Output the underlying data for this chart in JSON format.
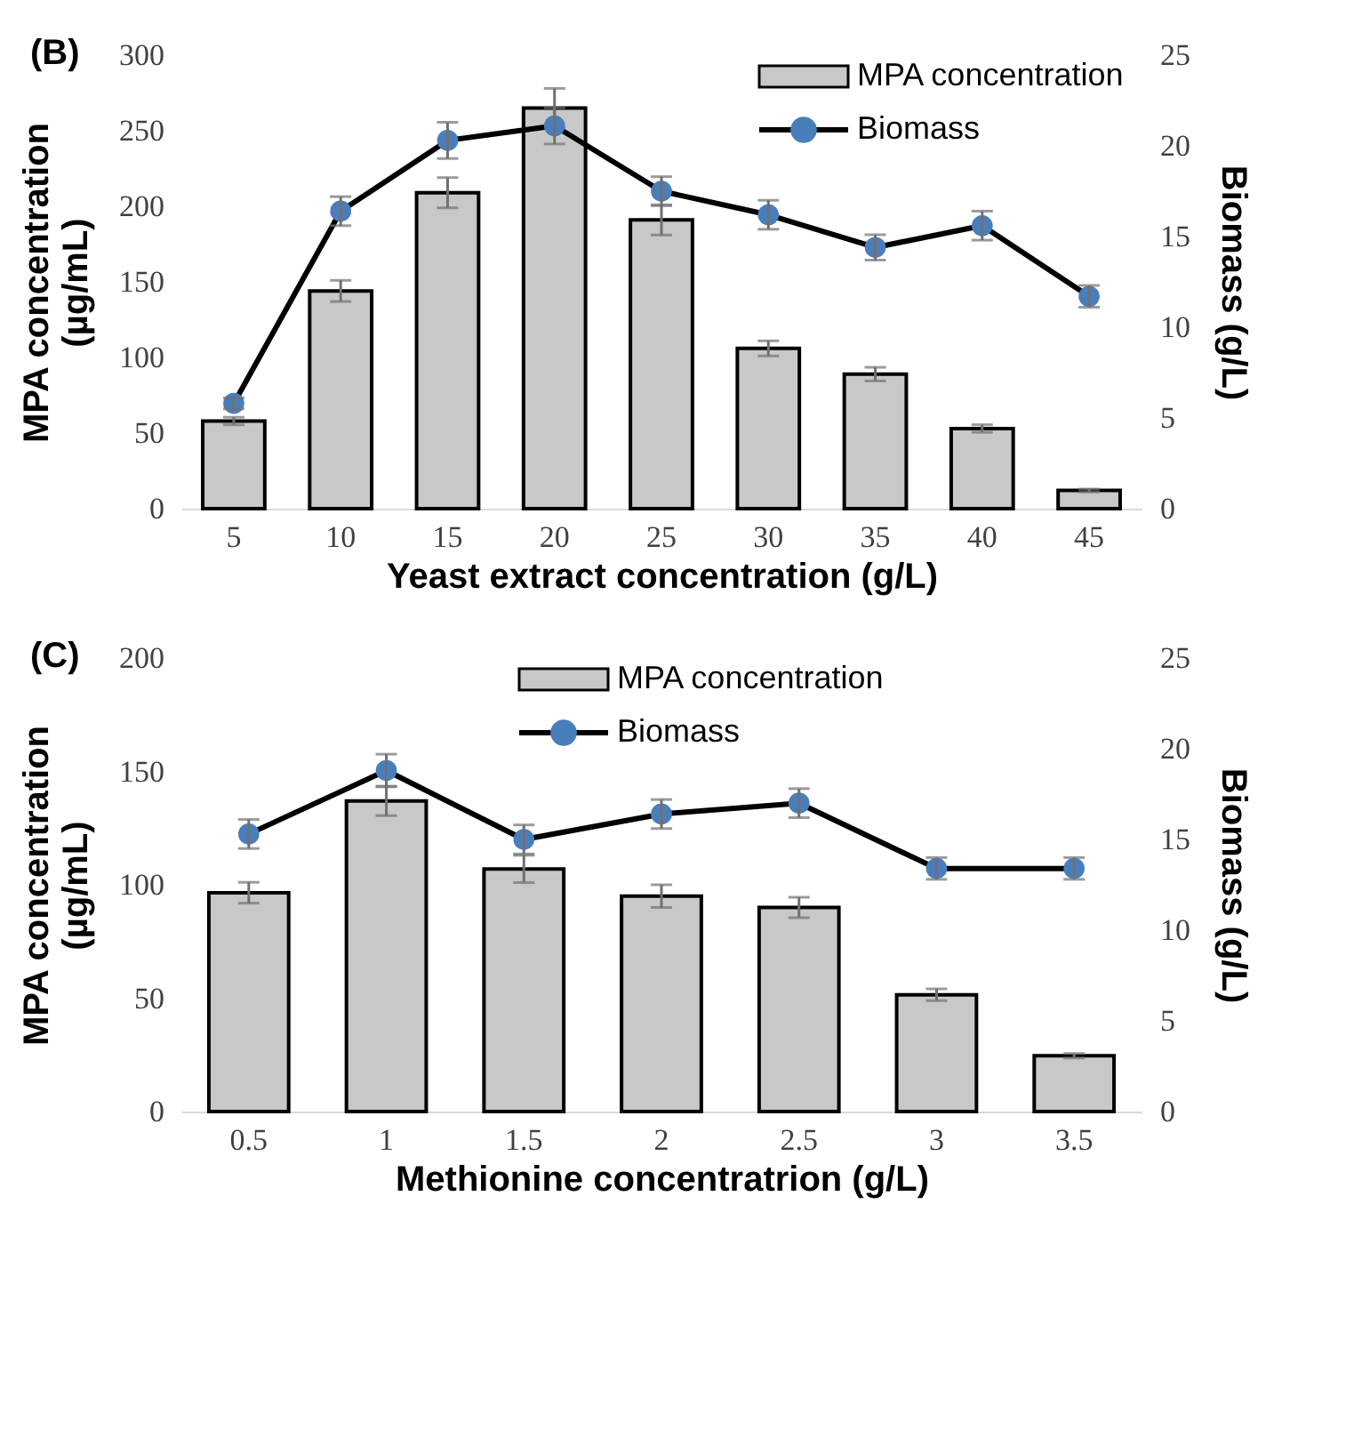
{
  "chart_data": [
    {
      "type": "bar",
      "title": "(B)",
      "xlabel": "Yeast extract concentration (g/L)",
      "ylabel": "MPA concentration\n(µg/mL)",
      "y2label": "Biomass (g/L)",
      "categories": [
        "5",
        "10",
        "15",
        "20",
        "25",
        "30",
        "35",
        "40",
        "45"
      ],
      "ylim": [
        0,
        300
      ],
      "yticks": [
        0,
        50,
        100,
        150,
        200,
        250,
        300
      ],
      "y2lim": [
        0,
        25
      ],
      "y2ticks": [
        0,
        5,
        10,
        15,
        20,
        25
      ],
      "grid": false,
      "legend": "top right",
      "marker": "circle",
      "line_style": "solid",
      "series": [
        {
          "name": "MPA concentration",
          "type": "bar",
          "color": "#c8c8c8",
          "values": [
            58,
            144,
            209,
            265,
            191,
            106,
            89,
            53,
            12
          ],
          "errors": [
            2.5,
            7,
            10,
            13,
            10,
            5,
            4.5,
            2.5,
            1
          ]
        },
        {
          "name": "Biomass",
          "type": "line",
          "axis": "y2",
          "color": "#4a7ebb",
          "values": [
            5.8,
            16.4,
            20.3,
            21.1,
            17.5,
            16.2,
            14.4,
            15.6,
            11.7
          ],
          "errors": [
            0.3,
            0.8,
            1.0,
            1.0,
            0.8,
            0.8,
            0.7,
            0.8,
            0.6
          ]
        }
      ]
    },
    {
      "type": "bar",
      "title": "(C)",
      "xlabel": "Methionine concentratrion (g/L)",
      "ylabel": "MPA concentration\n(µg/mL)",
      "y2label": "Biomass (g/L)",
      "categories": [
        "0.5",
        "1",
        "1.5",
        "2",
        "2.5",
        "3",
        "3.5"
      ],
      "ylim": [
        0,
        200
      ],
      "yticks": [
        0,
        50,
        100,
        150,
        200
      ],
      "y2lim": [
        0,
        25
      ],
      "y2ticks": [
        0,
        5,
        10,
        15,
        20,
        25
      ],
      "grid": false,
      "legend": "top",
      "marker": "circle",
      "line_style": "solid",
      "series": [
        {
          "name": "MPA concentration",
          "type": "bar",
          "color": "#c8c8c8",
          "values": [
            96.5,
            137,
            107,
            95,
            90,
            51.5,
            24.6
          ],
          "errors": [
            4.6,
            6.5,
            6,
            5,
            4.5,
            2.6,
            1
          ]
        },
        {
          "name": "Biomass",
          "type": "line",
          "axis": "y2",
          "color": "#4a7ebb",
          "values": [
            15.3,
            18.8,
            15.0,
            16.4,
            17.0,
            13.4,
            13.4
          ],
          "errors": [
            0.8,
            0.9,
            0.8,
            0.8,
            0.8,
            0.6,
            0.6
          ]
        }
      ]
    }
  ]
}
